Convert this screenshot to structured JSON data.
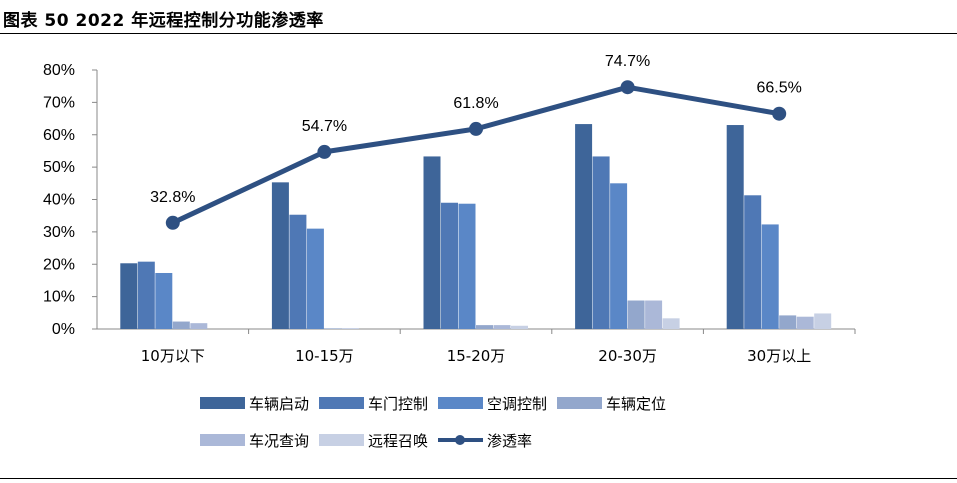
{
  "figure_title": "图表 50 2022 年远程控制分功能渗透率",
  "colors": {
    "车辆启动": "#3e6599",
    "车门控制": "#4f78b5",
    "空调控制": "#5a87c7",
    "车辆定位": "#93a7cc",
    "车况查询": "#abb8d8",
    "远程召唤": "#c7d0e4",
    "渗透率": "#2e5082"
  },
  "chart_data": {
    "type": "bar",
    "categories": [
      "10万以下",
      "10-15万",
      "15-20万",
      "20-30万",
      "30万以上"
    ],
    "series": [
      {
        "name": "车辆启动",
        "type": "bar",
        "values": [
          20.3,
          45.3,
          53.3,
          63.3,
          63.0
        ]
      },
      {
        "name": "车门控制",
        "type": "bar",
        "values": [
          20.8,
          35.3,
          39.0,
          53.3,
          41.3
        ]
      },
      {
        "name": "空调控制",
        "type": "bar",
        "values": [
          17.3,
          31.0,
          38.7,
          45.0,
          32.3
        ]
      },
      {
        "name": "车辆定位",
        "type": "bar",
        "values": [
          2.3,
          0.2,
          1.2,
          8.8,
          4.2
        ]
      },
      {
        "name": "车况查询",
        "type": "bar",
        "values": [
          1.8,
          0.2,
          1.2,
          8.8,
          3.8
        ]
      },
      {
        "name": "远程召唤",
        "type": "bar",
        "values": [
          0.0,
          0.0,
          1.0,
          3.3,
          4.8
        ]
      },
      {
        "name": "渗透率",
        "type": "line",
        "values": [
          32.8,
          54.7,
          61.8,
          74.7,
          66.5
        ],
        "labels": [
          "32.8%",
          "54.7%",
          "61.8%",
          "74.7%",
          "66.5%"
        ]
      }
    ],
    "y_ticks": [
      "0%",
      "10%",
      "20%",
      "30%",
      "40%",
      "50%",
      "60%",
      "70%",
      "80%"
    ],
    "ylim": [
      0,
      80
    ],
    "grid": false,
    "legend_position": "bottom"
  },
  "legend": {
    "rows": [
      [
        "车辆启动",
        "车门控制",
        "空调控制",
        "车辆定位"
      ],
      [
        "车况查询",
        "远程召唤",
        "渗透率"
      ]
    ]
  }
}
